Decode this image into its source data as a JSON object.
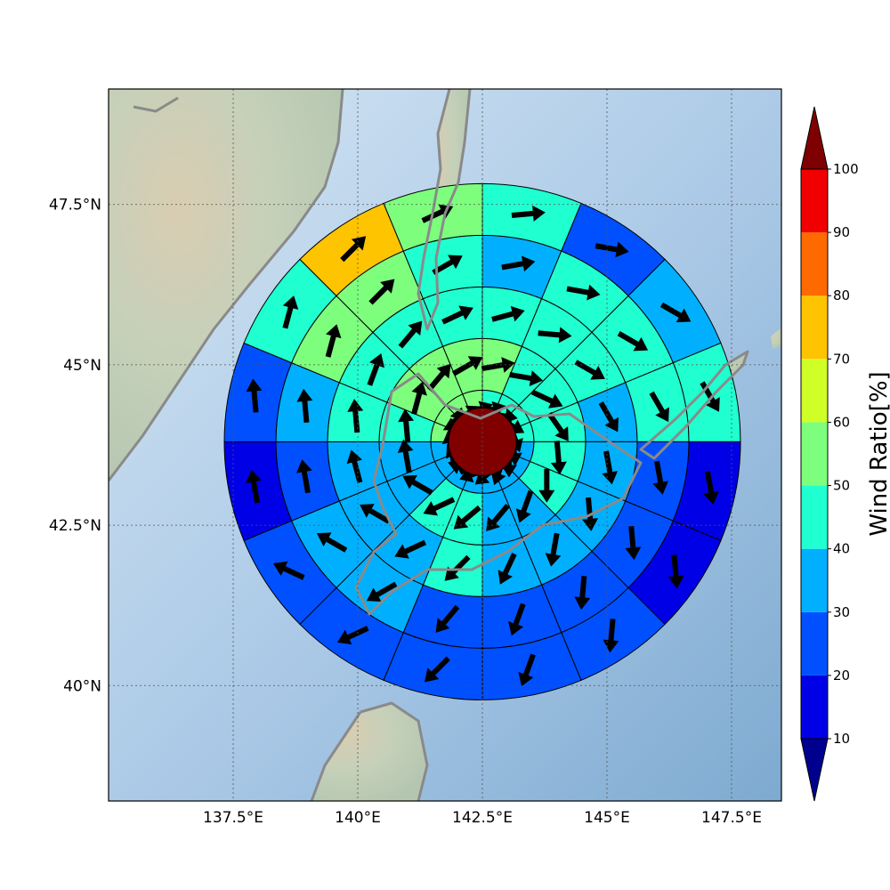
{
  "map": {
    "lon_range": [
      135.0,
      148.5
    ],
    "lat_range": [
      38.2,
      49.3
    ],
    "lon_ticks": [
      "137.5°E",
      "140°E",
      "142.5°E",
      "145°E",
      "147.5°E"
    ],
    "lat_ticks": [
      "40°N",
      "42.5°N",
      "45°N",
      "47.5°N"
    ],
    "graticule": "dotted",
    "background": "shaded relief terrain with ocean",
    "colors": {
      "ocean": "#a9c8e6",
      "land": "#c8d2bd",
      "coast": "#8a8a8a",
      "center": "#800000"
    }
  },
  "colorbar": {
    "label": "Wind Ratio[%]",
    "tick_labels": [
      "10",
      "20",
      "30",
      "40",
      "50",
      "60",
      "70",
      "80",
      "90",
      "100"
    ],
    "extend": "both",
    "levels": [
      {
        "range": "0-10",
        "color": "#00008f"
      },
      {
        "range": "10-20",
        "color": "#0000e6"
      },
      {
        "range": "20-30",
        "color": "#0050ff"
      },
      {
        "range": "30-40",
        "color": "#00b0ff"
      },
      {
        "range": "40-50",
        "color": "#20ffd0"
      },
      {
        "range": "50-60",
        "color": "#7dff7d"
      },
      {
        "range": "60-70",
        "color": "#d0ff28"
      },
      {
        "range": "70-80",
        "color": "#ffc400"
      },
      {
        "range": "80-90",
        "color": "#ff6a00"
      },
      {
        "range": "90-100",
        "color": "#f00000"
      },
      {
        "range": ">100",
        "color": "#7f0000"
      }
    ]
  },
  "chart_data": {
    "type": "heatmap",
    "description_of_structure": "polar grid around center, 5 rings x 16 sectors, value = wind ratio %",
    "center_lon": 142.5,
    "center_lat": 43.8,
    "rings": [
      1,
      2,
      3,
      4,
      5
    ],
    "sector_start_bearing_deg": 0,
    "sector_direction": "clockwise from north",
    "ring_values": [
      [
        40,
        40,
        40,
        40,
        30,
        30,
        30,
        30,
        30,
        30,
        30,
        30,
        50,
        50,
        50,
        50
      ],
      [
        50,
        40,
        40,
        40,
        40,
        40,
        30,
        30,
        40,
        40,
        30,
        30,
        40,
        50,
        50,
        50
      ],
      [
        40,
        40,
        40,
        30,
        30,
        30,
        30,
        30,
        40,
        30,
        30,
        30,
        40,
        40,
        40,
        40
      ],
      [
        30,
        40,
        40,
        40,
        20,
        20,
        20,
        20,
        20,
        30,
        30,
        20,
        30,
        50,
        50,
        40
      ],
      [
        40,
        20,
        30,
        40,
        10,
        10,
        20,
        20,
        20,
        20,
        20,
        10,
        20,
        40,
        70,
        50
      ]
    ],
    "ring_arrow_dirs": [
      [
        75,
        100,
        120,
        160,
        175,
        180,
        200,
        230,
        250,
        290,
        330,
        350,
        360,
        20,
        60,
        70
      ],
      [
        80,
        100,
        115,
        145,
        175,
        180,
        200,
        220,
        230,
        245,
        300,
        350,
        355,
        15,
        40,
        60
      ],
      [
        75,
        95,
        120,
        150,
        170,
        175,
        190,
        205,
        225,
        245,
        300,
        345,
        355,
        20,
        40,
        65
      ],
      [
        80,
        100,
        120,
        150,
        170,
        175,
        185,
        200,
        220,
        240,
        300,
        350,
        355,
        15,
        45,
        60
      ],
      [
        85,
        100,
        120,
        150,
        170,
        175,
        185,
        200,
        225,
        245,
        295,
        350,
        355,
        15,
        45,
        65
      ]
    ]
  }
}
